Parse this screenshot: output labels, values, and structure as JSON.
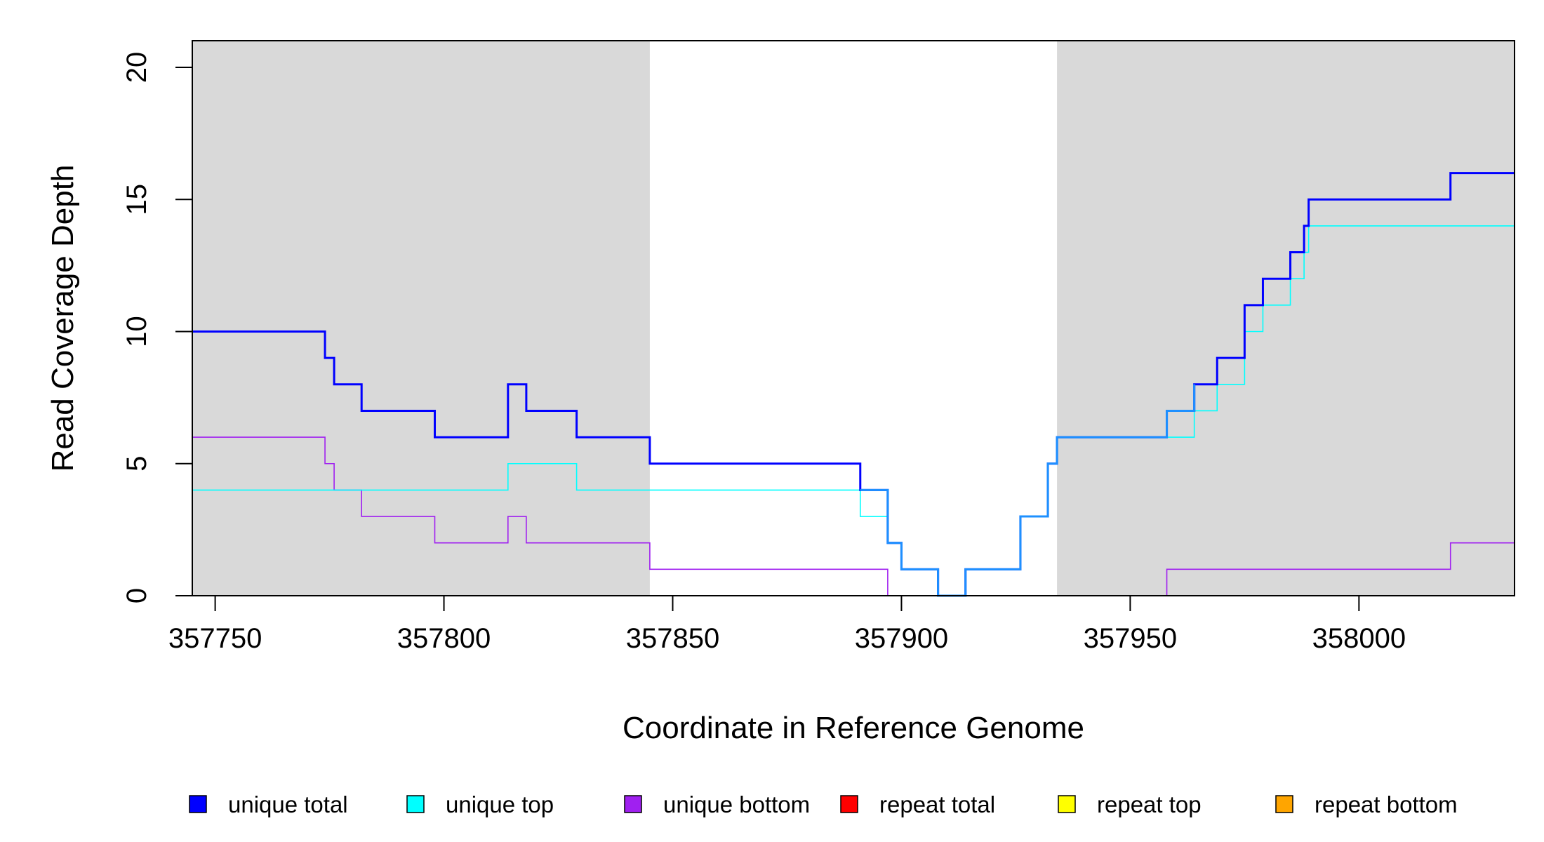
{
  "chart_data": {
    "type": "line",
    "step": true,
    "xlabel": "Coordinate in Reference Genome",
    "ylabel": "Read Coverage Depth",
    "xlim": [
      357745,
      358034
    ],
    "ylim": [
      0,
      20
    ],
    "x_ticks": [
      357750,
      357800,
      357850,
      357900,
      357950,
      358000
    ],
    "y_ticks": [
      0,
      5,
      10,
      15,
      20
    ],
    "shaded_regions": [
      {
        "from": 357745,
        "to": 357845,
        "color": "#d9d9d9"
      },
      {
        "from": 357934,
        "to": 358034,
        "color": "#d9d9d9"
      }
    ],
    "legend_position": "bottom",
    "series": [
      {
        "name": "unique total",
        "color": "#0000ff",
        "points": [
          [
            357745,
            10
          ],
          [
            357774,
            9
          ],
          [
            357776,
            8
          ],
          [
            357782,
            7
          ],
          [
            357798,
            6
          ],
          [
            357814,
            8
          ],
          [
            357818,
            7
          ],
          [
            357829,
            6
          ],
          [
            357845,
            5
          ],
          [
            357891,
            4
          ],
          [
            357897,
            2
          ],
          [
            357900,
            1
          ],
          [
            357908,
            0
          ],
          [
            357914,
            1
          ],
          [
            357926,
            3
          ],
          [
            357932,
            5
          ],
          [
            357934,
            6
          ],
          [
            357958,
            7
          ],
          [
            357964,
            8
          ],
          [
            357969,
            9
          ],
          [
            357975,
            11
          ],
          [
            357979,
            12
          ],
          [
            357985,
            13
          ],
          [
            357988,
            14
          ],
          [
            357989,
            15
          ],
          [
            358020,
            16
          ],
          [
            358034,
            16
          ]
        ]
      },
      {
        "name": "unique top",
        "color": "#00ffff",
        "points": [
          [
            357745,
            4
          ],
          [
            357814,
            5
          ],
          [
            357829,
            4
          ],
          [
            357891,
            3
          ],
          [
            357897,
            2
          ],
          [
            357900,
            1
          ],
          [
            357908,
            0
          ],
          [
            357914,
            1
          ],
          [
            357926,
            3
          ],
          [
            357932,
            5
          ],
          [
            357934,
            6
          ],
          [
            357964,
            7
          ],
          [
            357969,
            8
          ],
          [
            357975,
            10
          ],
          [
            357979,
            11
          ],
          [
            357985,
            12
          ],
          [
            357988,
            13
          ],
          [
            357989,
            14
          ],
          [
            358034,
            14
          ]
        ]
      },
      {
        "name": "unique bottom",
        "color": "#a020f0",
        "points": [
          [
            357745,
            6
          ],
          [
            357774,
            5
          ],
          [
            357776,
            4
          ],
          [
            357782,
            3
          ],
          [
            357798,
            2
          ],
          [
            357814,
            3
          ],
          [
            357818,
            2
          ],
          [
            357845,
            1
          ],
          [
            357897,
            0
          ],
          [
            357958,
            1
          ],
          [
            358020,
            2
          ],
          [
            358034,
            2
          ]
        ]
      },
      {
        "name": "repeat total",
        "color": "#ff0000",
        "points": [
          [
            357745,
            0
          ],
          [
            358034,
            0
          ]
        ]
      },
      {
        "name": "repeat top",
        "color": "#ffff00",
        "points": [
          [
            357745,
            0
          ],
          [
            358034,
            0
          ]
        ]
      },
      {
        "name": "repeat bottom",
        "color": "#ffa500",
        "points": [
          [
            357745,
            0
          ],
          [
            358034,
            0
          ]
        ]
      }
    ]
  }
}
